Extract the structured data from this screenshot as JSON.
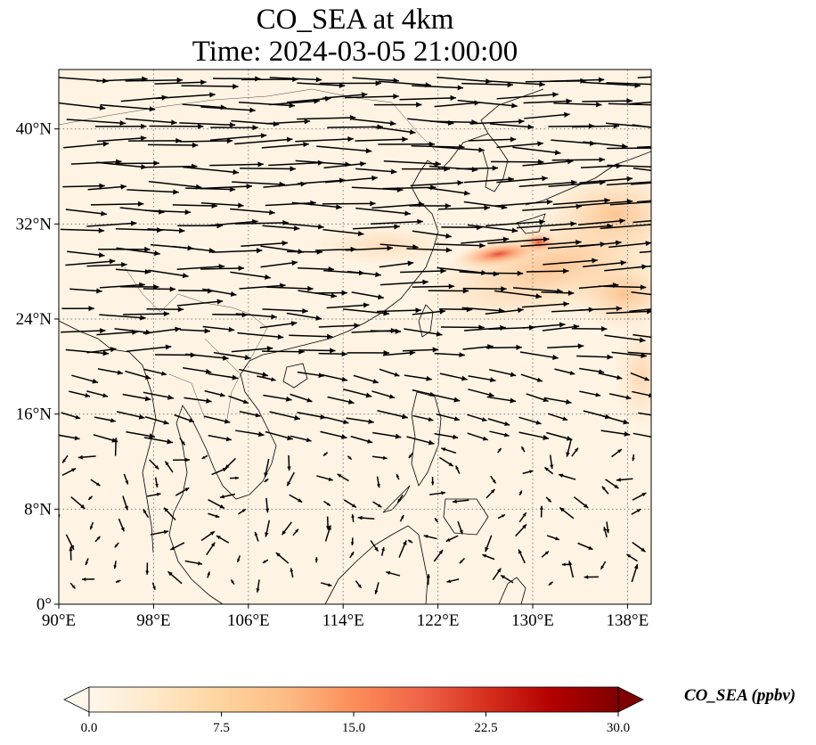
{
  "title": {
    "line1": "CO_SEA at 4km",
    "line2": "Time: 2024-03-05 21:00:00"
  },
  "axes": {
    "lon_range": [
      90,
      140
    ],
    "lat_range": [
      0,
      45
    ],
    "lon_ticks": [
      "90°E",
      "98°E",
      "106°E",
      "114°E",
      "122°E",
      "130°E",
      "138°E"
    ],
    "lat_ticks": [
      "0°",
      "8°N",
      "16°N",
      "24°N",
      "32°N",
      "40°N"
    ],
    "gridlines": "dotted"
  },
  "colorbar": {
    "label": "CO_SEA (ppbv)",
    "ticks": [
      "0.0",
      "7.5",
      "15.0",
      "22.5",
      "30.0"
    ],
    "range": [
      0,
      30
    ],
    "extend": "both",
    "colormap": "OrRd",
    "colors": [
      "#fff7ec",
      "#fee8c8",
      "#fdd49e",
      "#fdbb84",
      "#fc8d59",
      "#ef6548",
      "#d7301f",
      "#b30000",
      "#7f0000"
    ]
  },
  "field": {
    "background_color": "#fff3e3",
    "plume_peak_approx": [
      {
        "lon": 126.5,
        "lat": 29.5,
        "ppbv": 16
      },
      {
        "lon": 130.5,
        "lat": 30.5,
        "ppbv": 13
      }
    ]
  },
  "wind_vectors": "prevailing westerlies north of 20°N, weak variable winds in the tropics"
}
